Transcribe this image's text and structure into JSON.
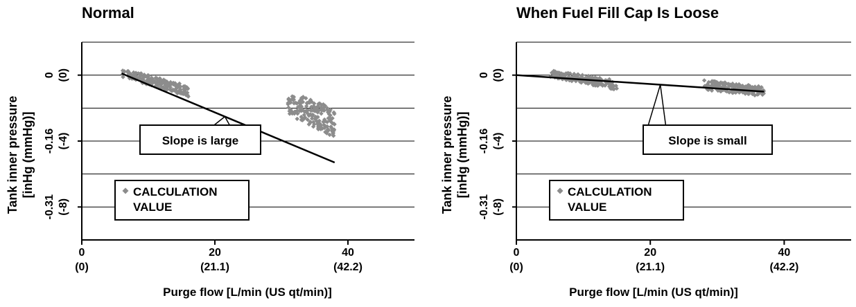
{
  "colors": {
    "points": "#8c8c8c",
    "line": "#000000",
    "grid": "#000000",
    "background": "#ffffff"
  },
  "chart_data": [
    {
      "type": "scatter",
      "title": "Normal",
      "xlabel": "Purge flow [L/min (US qt/min)]",
      "ylabel": [
        "Tank inner pressure",
        "[inHg (mmHg)]"
      ],
      "xlim": [
        0,
        50
      ],
      "ylim": [
        -10,
        2
      ],
      "x_ticks": [
        {
          "value": 0,
          "label": "0",
          "sublabel": "(0)"
        },
        {
          "value": 20,
          "label": "20",
          "sublabel": "(21.1)"
        },
        {
          "value": 40,
          "label": "40",
          "sublabel": "(42.2)"
        }
      ],
      "y_ticks": [
        {
          "value": 0,
          "label": "0",
          "sublabel": "(0)"
        },
        {
          "value": -4,
          "label": "-0.16",
          "sublabel": "(-4)"
        },
        {
          "value": -8,
          "label": "-0.31",
          "sublabel": "(-8)"
        }
      ],
      "y_gridlines": [
        2,
        0,
        -2,
        -4,
        -6,
        -8
      ],
      "series": [
        {
          "name": "CALCULATION VALUE",
          "marker": "diamond",
          "clusters": [
            {
              "x": [
                6,
                16
              ],
              "y_start": [
                -0.1,
                0.4
              ],
              "y_end": [
                -1.3,
                -0.6
              ]
            },
            {
              "x": [
                31,
                38
              ],
              "y_start": [
                -2.4,
                -1.0
              ],
              "y_end": [
                -3.8,
                -2.0
              ]
            }
          ]
        }
      ],
      "trend_line": {
        "x": [
          6,
          38
        ],
        "y": [
          0.1,
          -5.3
        ]
      },
      "annotation": "Slope is large",
      "legend": {
        "marker": "diamond",
        "lines": [
          "CALCULATION",
          "VALUE"
        ],
        "position": "bottom-left"
      }
    },
    {
      "type": "scatter",
      "title": "When Fuel Fill Cap Is Loose",
      "xlabel": "Purge flow [L/min (US qt/min)]",
      "ylabel": [
        "Tank inner pressure",
        "[inHg (mmHg)]"
      ],
      "xlim": [
        0,
        50
      ],
      "ylim": [
        -10,
        2
      ],
      "x_ticks": [
        {
          "value": 0,
          "label": "0",
          "sublabel": "(0)"
        },
        {
          "value": 20,
          "label": "20",
          "sublabel": "(21.1)"
        },
        {
          "value": 40,
          "label": "40",
          "sublabel": "(42.2)"
        }
      ],
      "y_ticks": [
        {
          "value": 0,
          "label": "0",
          "sublabel": "(0)"
        },
        {
          "value": -4,
          "label": "-0.16",
          "sublabel": "(-4)"
        },
        {
          "value": -8,
          "label": "-0.31",
          "sublabel": "(-8)"
        }
      ],
      "y_gridlines": [
        2,
        0,
        -2,
        -4,
        -6,
        -8
      ],
      "series": [
        {
          "name": "CALCULATION VALUE",
          "marker": "diamond",
          "clusters": [
            {
              "x": [
                5,
                15
              ],
              "y_start": [
                -0.1,
                0.3
              ],
              "y_end": [
                -0.9,
                -0.3
              ]
            },
            {
              "x": [
                28,
                37
              ],
              "y_start": [
                -0.9,
                -0.3
              ],
              "y_end": [
                -1.3,
                -0.7
              ]
            }
          ]
        }
      ],
      "trend_line": {
        "x": [
          0,
          37
        ],
        "y": [
          0,
          -1.0
        ]
      },
      "annotation": "Slope is small",
      "legend": {
        "marker": "diamond",
        "lines": [
          "CALCULATION",
          "VALUE"
        ],
        "position": "bottom-left"
      }
    }
  ]
}
